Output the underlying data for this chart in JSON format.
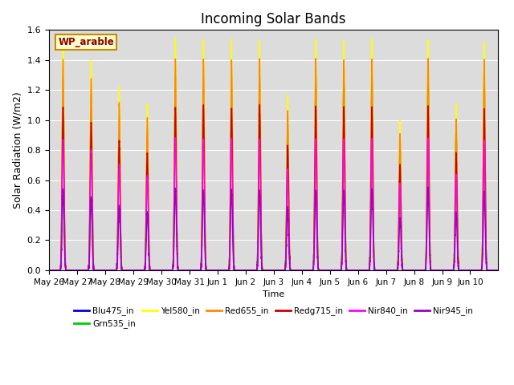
{
  "title": "Incoming Solar Bands",
  "ylabel": "Solar Radiation (W/m2)",
  "xlabel": "Time",
  "box_label": "WP_arable",
  "ylim": [
    0.0,
    1.6
  ],
  "background_color": "#dcdcdc",
  "series": [
    {
      "name": "Blu475_in",
      "color": "#0000dd",
      "peak": 1.28,
      "lw": 1.0
    },
    {
      "name": "Grn535_in",
      "color": "#00cc00",
      "peak": 1.28,
      "lw": 1.0
    },
    {
      "name": "Yel580_in",
      "color": "#ffff00",
      "peak": 1.53,
      "lw": 1.0
    },
    {
      "name": "Red655_in",
      "color": "#ff8800",
      "peak": 1.4,
      "lw": 1.0
    },
    {
      "name": "Redg715_in",
      "color": "#cc0000",
      "peak": 1.08,
      "lw": 1.0
    },
    {
      "name": "Nir840_in",
      "color": "#ff00ff",
      "peak": 0.87,
      "lw": 1.0
    },
    {
      "name": "Nir945_in",
      "color": "#9900cc",
      "peak": 0.53,
      "lw": 1.0
    }
  ],
  "n_days": 16,
  "tick_labels": [
    "May 26",
    "May 27",
    "May 28",
    "May 29",
    "May 30",
    "May 31",
    "Jun 1",
    "Jun 2",
    "Jun 3",
    "Jun 4",
    "Jun 5",
    "Jun 6",
    "Jun 7",
    "Jun 8",
    "Jun 9",
    "Jun 10"
  ],
  "tick_positions": [
    0,
    1,
    2,
    3,
    4,
    5,
    6,
    7,
    8,
    9,
    10,
    11,
    12,
    13,
    14,
    15
  ],
  "day_scales": [
    1.0,
    0.91,
    0.8,
    0.72,
    1.0,
    1.0,
    1.0,
    1.0,
    0.76,
    1.0,
    1.0,
    1.0,
    0.65,
    1.0,
    0.72,
    0.99
  ],
  "pts_per_day": 500,
  "day_start": 0.35,
  "day_end": 0.65,
  "sharpness": 8.0
}
